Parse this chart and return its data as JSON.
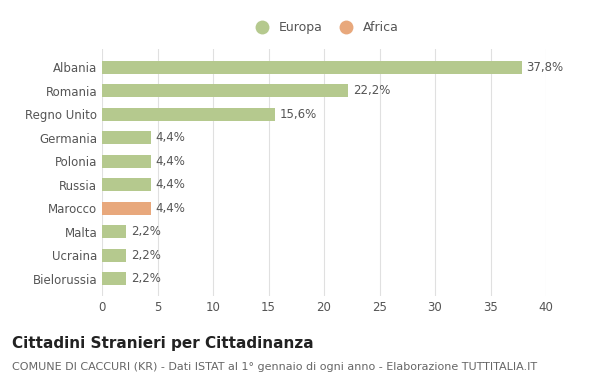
{
  "categories": [
    "Bielorussia",
    "Ucraina",
    "Malta",
    "Marocco",
    "Russia",
    "Polonia",
    "Germania",
    "Regno Unito",
    "Romania",
    "Albania"
  ],
  "values": [
    2.2,
    2.2,
    2.2,
    4.4,
    4.4,
    4.4,
    4.4,
    15.6,
    22.2,
    37.8
  ],
  "labels": [
    "2,2%",
    "2,2%",
    "2,2%",
    "4,4%",
    "4,4%",
    "4,4%",
    "4,4%",
    "15,6%",
    "22,2%",
    "37,8%"
  ],
  "colors": [
    "#b5c98e",
    "#b5c98e",
    "#b5c98e",
    "#e8a87c",
    "#b5c98e",
    "#b5c98e",
    "#b5c98e",
    "#b5c98e",
    "#b5c98e",
    "#b5c98e"
  ],
  "legend_europa_color": "#b5c98e",
  "legend_africa_color": "#e8a87c",
  "title": "Cittadini Stranieri per Cittadinanza",
  "subtitle": "COMUNE DI CACCURI (KR) - Dati ISTAT al 1° gennaio di ogni anno - Elaborazione TUTTITALIA.IT",
  "xlim": [
    0,
    40
  ],
  "xticks": [
    0,
    5,
    10,
    15,
    20,
    25,
    30,
    35,
    40
  ],
  "background_color": "#ffffff",
  "grid_color": "#e0e0e0",
  "bar_height": 0.55,
  "title_fontsize": 11,
  "subtitle_fontsize": 8,
  "label_fontsize": 8.5,
  "tick_fontsize": 8.5,
  "legend_fontsize": 9
}
